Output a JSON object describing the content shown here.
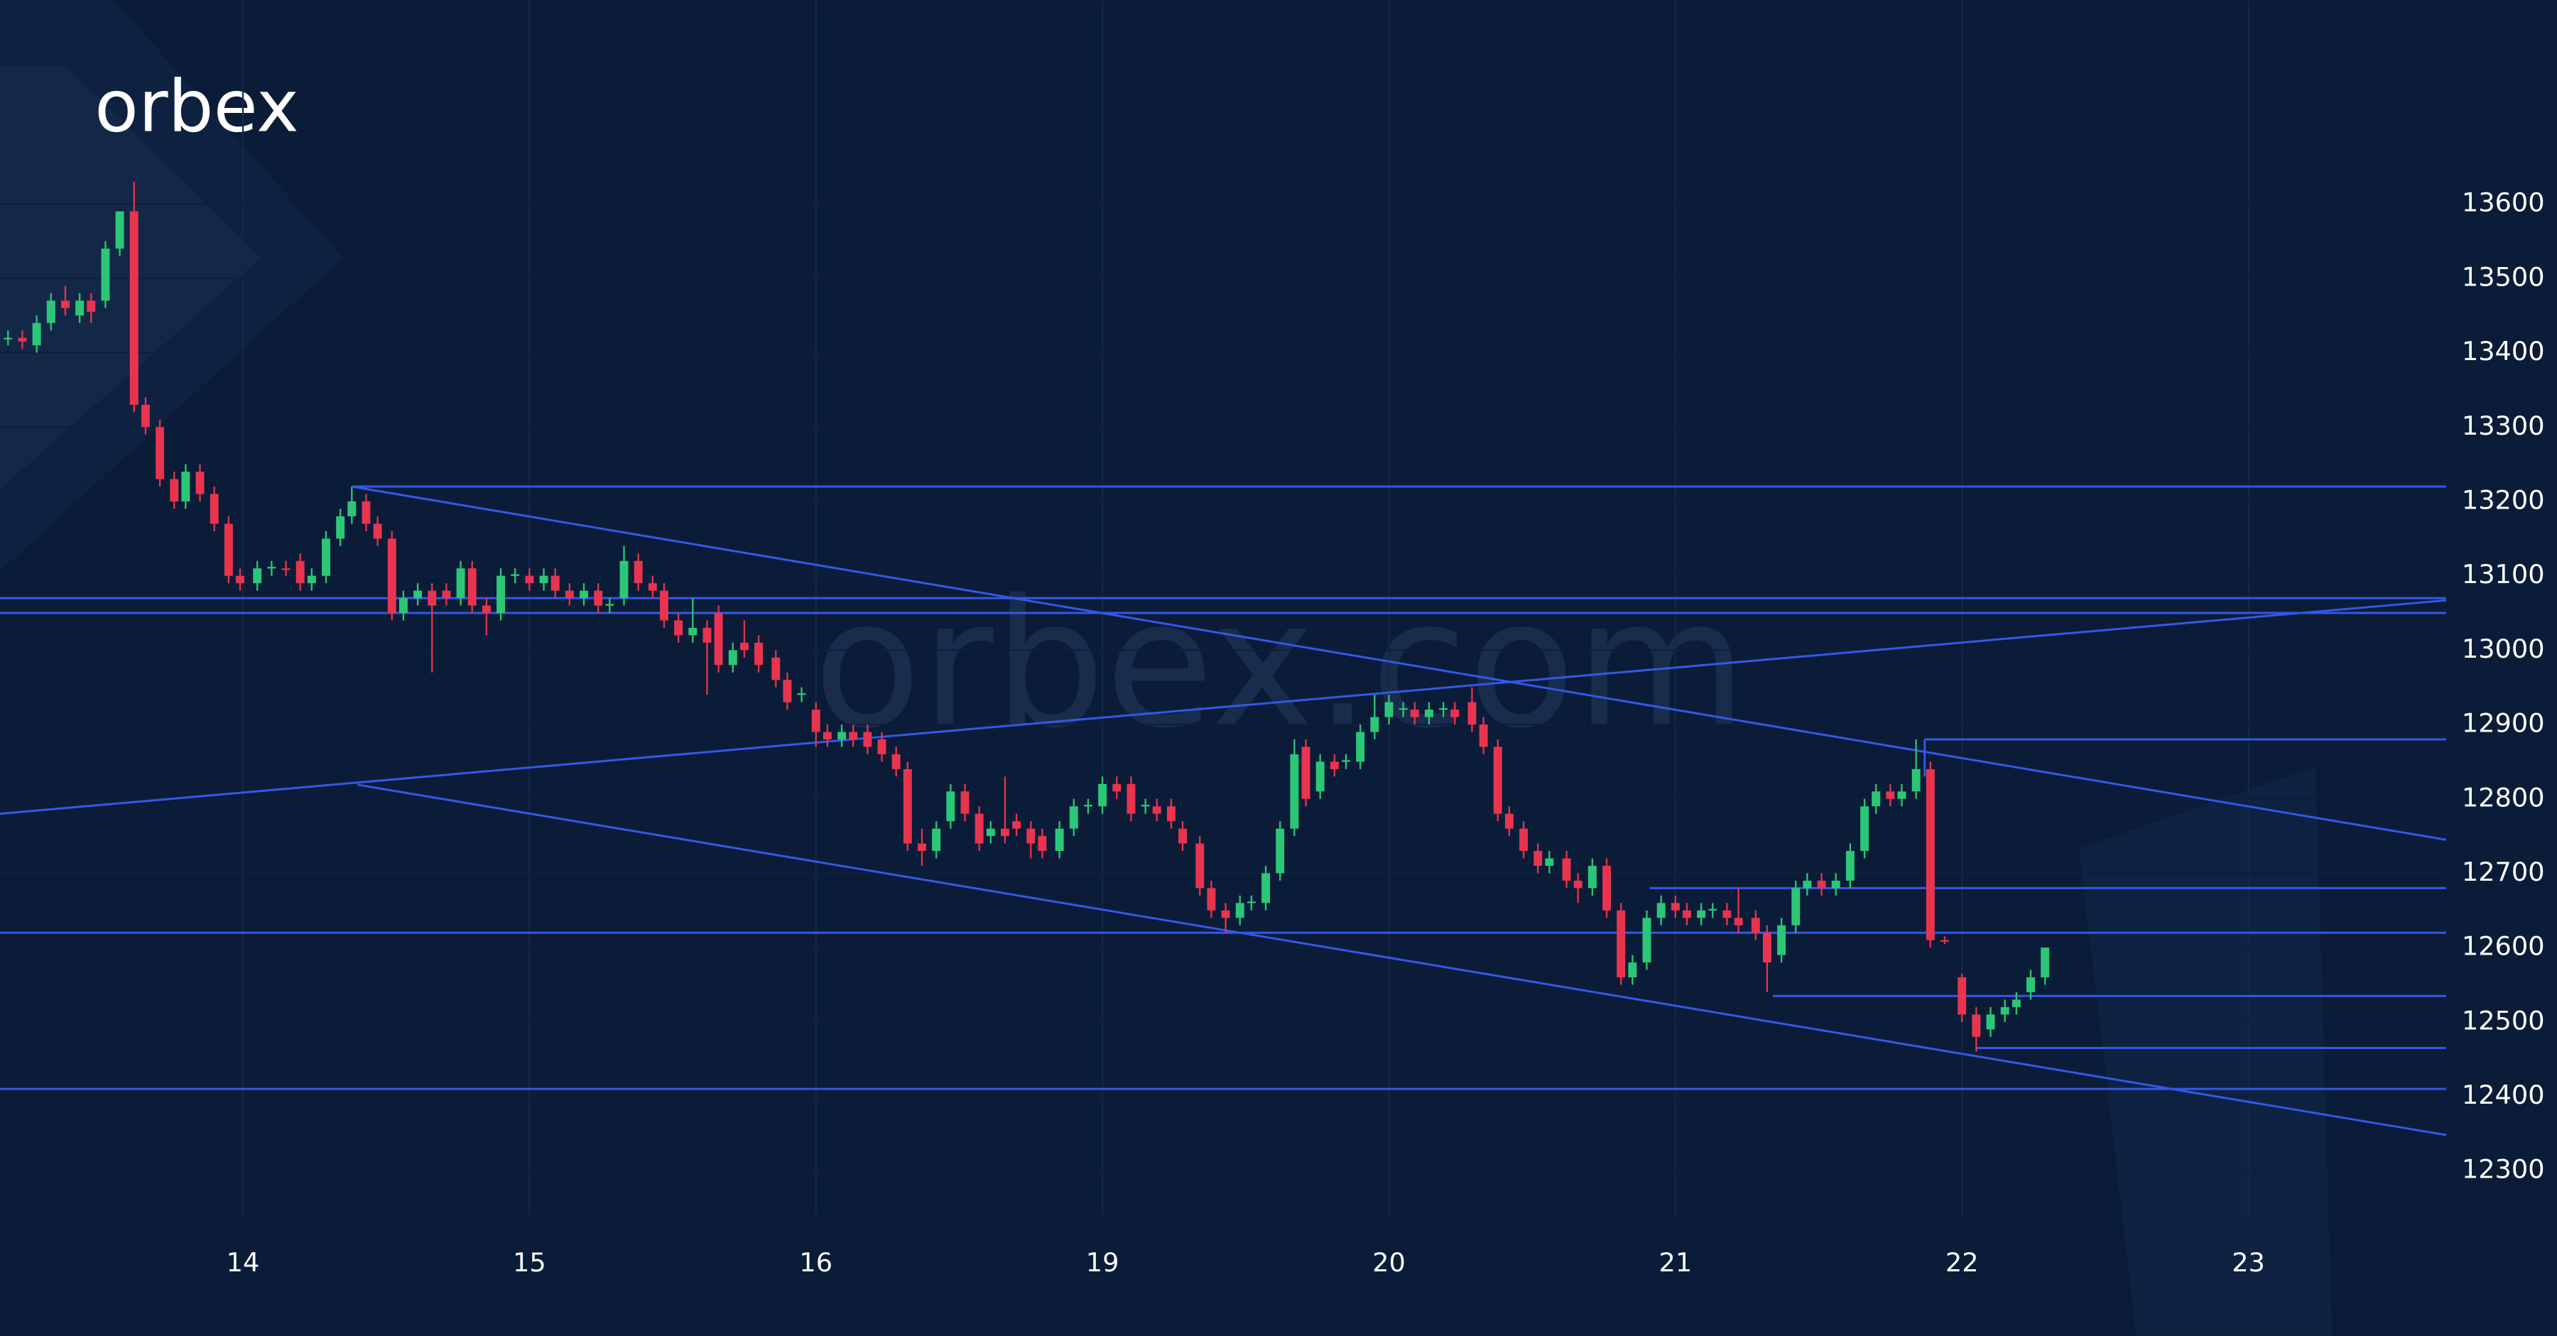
{
  "chart_data": {
    "type": "candlestick",
    "logo": "orbex",
    "watermark": "orbex.com",
    "up_color": "#2bc777",
    "down_color": "#e8344e",
    "line_color": "#3358e6",
    "grid": true,
    "xlim": [
      -0.848,
      7.69
    ],
    "ylim": [
      12078,
      13874
    ],
    "xticks": [
      {
        "value": 0,
        "label": "14"
      },
      {
        "value": 1,
        "label": "15"
      },
      {
        "value": 2,
        "label": "16"
      },
      {
        "value": 3,
        "label": "19"
      },
      {
        "value": 4,
        "label": "20"
      },
      {
        "value": 5,
        "label": "21"
      },
      {
        "value": 6,
        "label": "22"
      },
      {
        "value": 7,
        "label": "23"
      }
    ],
    "yticks": [
      12300,
      12400,
      12500,
      12600,
      12700,
      12800,
      12900,
      13000,
      13100,
      13200,
      13300,
      13400,
      13500,
      13600
    ],
    "candles": [
      [
        -0.82,
        13420,
        13430,
        13410,
        13420
      ],
      [
        -0.77,
        13420,
        13430,
        13405,
        13415
      ],
      [
        -0.72,
        13410,
        13450,
        13400,
        13440
      ],
      [
        -0.67,
        13440,
        13480,
        13430,
        13470
      ],
      [
        -0.62,
        13470,
        13490,
        13450,
        13460
      ],
      [
        -0.57,
        13450,
        13480,
        13440,
        13470
      ],
      [
        -0.53,
        13470,
        13480,
        13440,
        13455
      ],
      [
        -0.48,
        13470,
        13550,
        13460,
        13540
      ],
      [
        -0.43,
        13540,
        13590,
        13530,
        13590
      ],
      [
        -0.38,
        13590,
        13630,
        13320,
        13330
      ],
      [
        -0.34,
        13330,
        13340,
        13290,
        13300
      ],
      [
        -0.29,
        13300,
        13310,
        13220,
        13230
      ],
      [
        -0.24,
        13230,
        13240,
        13190,
        13200
      ],
      [
        -0.2,
        13200,
        13250,
        13190,
        13240
      ],
      [
        -0.15,
        13240,
        13250,
        13200,
        13210
      ],
      [
        -0.1,
        13210,
        13220,
        13160,
        13170
      ],
      [
        -0.05,
        13170,
        13180,
        13090,
        13100
      ],
      [
        -0.01,
        13100,
        13110,
        13080,
        13090
      ],
      [
        0.05,
        13090,
        13120,
        13080,
        13110
      ],
      [
        0.1,
        13110,
        13120,
        13100,
        13112
      ],
      [
        0.15,
        13110,
        13120,
        13100,
        13108
      ],
      [
        0.2,
        13120,
        13130,
        13080,
        13090
      ],
      [
        0.24,
        13090,
        13110,
        13080,
        13100
      ],
      [
        0.29,
        13100,
        13160,
        13090,
        13150
      ],
      [
        0.34,
        13150,
        13190,
        13140,
        13180
      ],
      [
        0.38,
        13180,
        13220,
        13170,
        13200
      ],
      [
        0.43,
        13200,
        13210,
        13160,
        13170
      ],
      [
        0.47,
        13170,
        13180,
        13140,
        13150
      ],
      [
        0.52,
        13150,
        13160,
        13040,
        13050
      ],
      [
        0.56,
        13050,
        13080,
        13040,
        13070
      ],
      [
        0.61,
        13070,
        13090,
        13060,
        13080
      ],
      [
        0.66,
        13080,
        13090,
        12970,
        13060
      ],
      [
        0.71,
        13080,
        13090,
        13060,
        13070
      ],
      [
        0.76,
        13070,
        13120,
        13060,
        13110
      ],
      [
        0.8,
        13110,
        13120,
        13050,
        13060
      ],
      [
        0.85,
        13060,
        13070,
        13020,
        13050
      ],
      [
        0.9,
        13050,
        13110,
        13040,
        13100
      ],
      [
        0.95,
        13100,
        13110,
        13090,
        13102
      ],
      [
        1.0,
        13100,
        13110,
        13080,
        13090
      ],
      [
        1.05,
        13090,
        13110,
        13080,
        13100
      ],
      [
        1.09,
        13100,
        13110,
        13070,
        13080
      ],
      [
        1.14,
        13080,
        13090,
        13060,
        13070
      ],
      [
        1.19,
        13070,
        13090,
        13060,
        13080
      ],
      [
        1.24,
        13080,
        13090,
        13050,
        13060
      ],
      [
        1.28,
        13060,
        13070,
        13050,
        13062
      ],
      [
        1.33,
        13070,
        13140,
        13060,
        13120
      ],
      [
        1.38,
        13120,
        13130,
        13080,
        13090
      ],
      [
        1.43,
        13090,
        13100,
        13070,
        13080
      ],
      [
        1.47,
        13080,
        13090,
        13030,
        13040
      ],
      [
        1.52,
        13040,
        13050,
        13010,
        13020
      ],
      [
        1.57,
        13020,
        13070,
        13010,
        13030
      ],
      [
        1.62,
        13030,
        13040,
        12940,
        13010
      ],
      [
        1.66,
        13050,
        13060,
        12970,
        12980
      ],
      [
        1.71,
        12980,
        13010,
        12970,
        13000
      ],
      [
        1.75,
        13010,
        13040,
        12990,
        13000
      ],
      [
        1.8,
        13010,
        13020,
        12970,
        12980
      ],
      [
        1.86,
        12990,
        13000,
        12950,
        12960
      ],
      [
        1.9,
        12960,
        12970,
        12920,
        12930
      ],
      [
        1.95,
        12940,
        12950,
        12930,
        12942
      ],
      [
        2.0,
        12920,
        12930,
        12870,
        12890
      ],
      [
        2.04,
        12890,
        12900,
        12870,
        12880
      ],
      [
        2.09,
        12880,
        12900,
        12870,
        12890
      ],
      [
        2.13,
        12890,
        12900,
        12870,
        12880
      ],
      [
        2.18,
        12890,
        12900,
        12860,
        12870
      ],
      [
        2.23,
        12880,
        12890,
        12850,
        12860
      ],
      [
        2.28,
        12860,
        12870,
        12830,
        12840
      ],
      [
        2.32,
        12840,
        12850,
        12730,
        12740
      ],
      [
        2.37,
        12740,
        12760,
        12710,
        12730
      ],
      [
        2.42,
        12730,
        12770,
        12720,
        12760
      ],
      [
        2.47,
        12770,
        12820,
        12760,
        12810
      ],
      [
        2.52,
        12810,
        12820,
        12770,
        12780
      ],
      [
        2.57,
        12780,
        12790,
        12730,
        12740
      ],
      [
        2.61,
        12750,
        12770,
        12740,
        12760
      ],
      [
        2.66,
        12760,
        12830,
        12740,
        12750
      ],
      [
        2.7,
        12770,
        12780,
        12750,
        12760
      ],
      [
        2.75,
        12760,
        12770,
        12720,
        12740
      ],
      [
        2.79,
        12750,
        12760,
        12720,
        12730
      ],
      [
        2.85,
        12730,
        12770,
        12720,
        12760
      ],
      [
        2.9,
        12760,
        12800,
        12750,
        12790
      ],
      [
        2.95,
        12790,
        12800,
        12780,
        12792
      ],
      [
        3.0,
        12790,
        12830,
        12780,
        12820
      ],
      [
        3.05,
        12820,
        12830,
        12800,
        12810
      ],
      [
        3.1,
        12820,
        12830,
        12770,
        12780
      ],
      [
        3.15,
        12790,
        12800,
        12780,
        12792
      ],
      [
        3.19,
        12790,
        12800,
        12770,
        12780
      ],
      [
        3.24,
        12790,
        12800,
        12760,
        12770
      ],
      [
        3.28,
        12760,
        12770,
        12730,
        12740
      ],
      [
        3.34,
        12740,
        12750,
        12670,
        12680
      ],
      [
        3.38,
        12680,
        12690,
        12640,
        12650
      ],
      [
        3.43,
        12650,
        12660,
        12620,
        12640
      ],
      [
        3.48,
        12640,
        12670,
        12630,
        12660
      ],
      [
        3.52,
        12660,
        12670,
        12650,
        12662
      ],
      [
        3.57,
        12660,
        12710,
        12650,
        12700
      ],
      [
        3.62,
        12700,
        12770,
        12690,
        12760
      ],
      [
        3.67,
        12760,
        12880,
        12750,
        12860
      ],
      [
        3.71,
        12870,
        12880,
        12790,
        12800
      ],
      [
        3.76,
        12810,
        12860,
        12800,
        12850
      ],
      [
        3.81,
        12850,
        12860,
        12830,
        12840
      ],
      [
        3.85,
        12850,
        12860,
        12840,
        12852
      ],
      [
        3.9,
        12850,
        12900,
        12840,
        12890
      ],
      [
        3.95,
        12890,
        12940,
        12880,
        12910
      ],
      [
        4.0,
        12910,
        12940,
        12900,
        12930
      ],
      [
        4.05,
        12920,
        12930,
        12910,
        12922
      ],
      [
        4.09,
        12920,
        12930,
        12900,
        12910
      ],
      [
        4.14,
        12910,
        12930,
        12900,
        12920
      ],
      [
        4.19,
        12920,
        12930,
        12910,
        12922
      ],
      [
        4.23,
        12920,
        12930,
        12900,
        12910
      ],
      [
        4.29,
        12930,
        12950,
        12890,
        12900
      ],
      [
        4.33,
        12900,
        12910,
        12860,
        12870
      ],
      [
        4.38,
        12870,
        12880,
        12770,
        12780
      ],
      [
        4.42,
        12780,
        12790,
        12750,
        12760
      ],
      [
        4.47,
        12760,
        12770,
        12720,
        12730
      ],
      [
        4.52,
        12730,
        12740,
        12700,
        12710
      ],
      [
        4.56,
        12710,
        12730,
        12700,
        12720
      ],
      [
        4.62,
        12720,
        12730,
        12680,
        12690
      ],
      [
        4.66,
        12690,
        12700,
        12660,
        12680
      ],
      [
        4.71,
        12680,
        12720,
        12670,
        12710
      ],
      [
        4.76,
        12710,
        12720,
        12640,
        12650
      ],
      [
        4.81,
        12650,
        12660,
        12550,
        12560
      ],
      [
        4.85,
        12560,
        12590,
        12550,
        12580
      ],
      [
        4.9,
        12580,
        12650,
        12570,
        12640
      ],
      [
        4.95,
        12640,
        12670,
        12630,
        12660
      ],
      [
        5.0,
        12660,
        12670,
        12640,
        12650
      ],
      [
        5.04,
        12650,
        12660,
        12630,
        12640
      ],
      [
        5.09,
        12640,
        12660,
        12630,
        12650
      ],
      [
        5.13,
        12650,
        12660,
        12640,
        12652
      ],
      [
        5.18,
        12650,
        12660,
        12630,
        12640
      ],
      [
        5.22,
        12640,
        12680,
        12620,
        12630
      ],
      [
        5.28,
        12640,
        12650,
        12610,
        12620
      ],
      [
        5.32,
        12620,
        12630,
        12540,
        12580
      ],
      [
        5.37,
        12590,
        12640,
        12580,
        12630
      ],
      [
        5.42,
        12630,
        12690,
        12620,
        12680
      ],
      [
        5.46,
        12680,
        12700,
        12670,
        12690
      ],
      [
        5.51,
        12690,
        12700,
        12670,
        12680
      ],
      [
        5.56,
        12680,
        12700,
        12670,
        12690
      ],
      [
        5.61,
        12690,
        12740,
        12680,
        12730
      ],
      [
        5.66,
        12730,
        12800,
        12720,
        12790
      ],
      [
        5.7,
        12790,
        12820,
        12780,
        12810
      ],
      [
        5.75,
        12810,
        12820,
        12790,
        12800
      ],
      [
        5.79,
        12800,
        12820,
        12790,
        12810
      ],
      [
        5.84,
        12810,
        12880,
        12800,
        12840
      ],
      [
        5.89,
        12840,
        12850,
        12600,
        12610
      ],
      [
        5.94,
        12610,
        12615,
        12605,
        12608
      ],
      [
        6.0,
        12560,
        12565,
        12500,
        12510
      ],
      [
        6.05,
        12510,
        12520,
        12460,
        12480
      ],
      [
        6.1,
        12490,
        12520,
        12480,
        12510
      ],
      [
        6.15,
        12510,
        12530,
        12500,
        12520
      ],
      [
        6.19,
        12520,
        12540,
        12510,
        12530
      ],
      [
        6.24,
        12540,
        12570,
        12530,
        12560
      ],
      [
        6.29,
        12560,
        12600,
        12550,
        12600
      ]
    ],
    "lines": [
      [
        0.38,
        13220,
        7.69,
        13220
      ],
      [
        -0.848,
        13070,
        7.69,
        13070
      ],
      [
        -0.848,
        13050,
        7.69,
        13050
      ],
      [
        -0.848,
        12620,
        7.69,
        12620
      ],
      [
        -0.848,
        12410,
        7.69,
        12410
      ],
      [
        5.87,
        12880,
        7.69,
        12880
      ],
      [
        5.87,
        12880,
        5.87,
        12830
      ],
      [
        4.91,
        12680,
        7.69,
        12680
      ],
      [
        5.34,
        12535,
        7.69,
        12535
      ],
      [
        6.05,
        12465,
        7.69,
        12465
      ],
      [
        0.38,
        13220,
        7.69,
        12745
      ],
      [
        -0.848,
        12780,
        7.69,
        13067
      ],
      [
        0.4,
        12819,
        7.69,
        12348
      ]
    ]
  }
}
